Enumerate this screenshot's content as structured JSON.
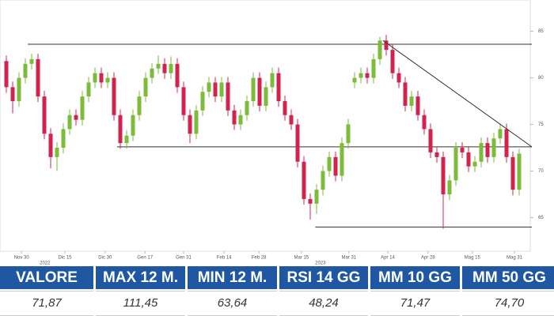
{
  "chart_data": {
    "type": "candlestick",
    "x": [
      0,
      1,
      2,
      3,
      4,
      5,
      6,
      7,
      8,
      9,
      10,
      11,
      12,
      13,
      14,
      15,
      16,
      17,
      18,
      19,
      20,
      21,
      22,
      23,
      24,
      25,
      26,
      27,
      28,
      29,
      30,
      31,
      32,
      33,
      34,
      35,
      36,
      37,
      38,
      39,
      40,
      41,
      42,
      43,
      44,
      45,
      46,
      47,
      48,
      49,
      50,
      51,
      52,
      53,
      54,
      55,
      56,
      57,
      58,
      59,
      60,
      61,
      62,
      63,
      64,
      65,
      66,
      67,
      68,
      69,
      70,
      71,
      72,
      73,
      74,
      75,
      76,
      77,
      78,
      79,
      80,
      81
    ],
    "open": [
      81.8,
      79.0,
      77.5,
      80.0,
      81.5,
      82.0,
      78.0,
      74.0,
      71.5,
      72.5,
      74.5,
      76.0,
      75.5,
      78.0,
      79.5,
      80.5,
      79.5,
      80.0,
      76.0,
      73.0,
      73.8,
      76.0,
      78.0,
      80.0,
      81.0,
      81.5,
      80.5,
      81.5,
      79.0,
      76.0,
      74.0,
      76.5,
      78.5,
      79.5,
      78.0,
      79.5,
      76.5,
      75.0,
      76.0,
      77.5,
      80.0,
      77.0,
      79.0,
      80.5,
      77.5,
      76.0,
      75.0,
      71.0,
      67.0,
      66.5,
      68.0,
      70.0,
      71.5,
      69.5,
      73.0,
      79.5,
      80.0,
      80.5,
      80.0,
      82.0,
      84.0,
      83.0,
      80.5,
      79.5,
      77.0,
      78.0,
      76.0,
      74.5,
      72.0,
      71.5,
      67.5,
      69.0,
      72.5,
      72.0,
      70.5,
      71.0,
      73.0,
      71.5,
      73.5,
      74.5,
      71.5,
      68.0
    ],
    "high": [
      82.4,
      79.6,
      80.6,
      82.1,
      82.6,
      82.6,
      78.6,
      74.6,
      73.1,
      75.1,
      76.6,
      76.6,
      78.6,
      80.1,
      81.1,
      81.1,
      80.6,
      80.6,
      76.6,
      74.4,
      76.6,
      78.6,
      80.6,
      81.6,
      82.4,
      82.1,
      82.3,
      82.1,
      79.6,
      76.6,
      77.1,
      79.1,
      80.1,
      80.1,
      80.1,
      80.1,
      77.1,
      76.6,
      78.1,
      80.6,
      80.6,
      79.6,
      81.1,
      81.1,
      78.1,
      76.6,
      75.6,
      71.6,
      67.6,
      68.6,
      70.6,
      72.1,
      72.1,
      73.6,
      75.6,
      80.6,
      81.1,
      81.1,
      82.6,
      84.4,
      84.6,
      83.6,
      81.1,
      80.1,
      78.6,
      78.6,
      76.6,
      75.1,
      72.6,
      72.1,
      69.6,
      73.1,
      73.1,
      72.6,
      71.6,
      73.6,
      73.6,
      74.1,
      75.1,
      75.1,
      72.1,
      72.4
    ],
    "low": [
      78.4,
      76.2,
      76.9,
      79.4,
      80.9,
      77.4,
      73.4,
      70.3,
      70.0,
      71.9,
      73.9,
      74.9,
      74.9,
      77.4,
      78.9,
      78.9,
      78.9,
      75.4,
      72.4,
      72.4,
      73.2,
      75.4,
      77.4,
      79.4,
      80.4,
      79.9,
      79.9,
      78.4,
      75.4,
      73.0,
      73.4,
      75.9,
      77.9,
      77.4,
      77.4,
      75.9,
      74.4,
      74.4,
      75.4,
      76.9,
      76.4,
      76.4,
      78.4,
      76.9,
      75.4,
      74.4,
      70.4,
      66.4,
      64.8,
      65.4,
      67.4,
      69.4,
      68.9,
      68.9,
      72.4,
      78.9,
      79.4,
      79.4,
      79.4,
      81.4,
      82.4,
      79.9,
      78.9,
      76.4,
      76.4,
      75.4,
      73.9,
      71.4,
      70.9,
      63.8,
      66.9,
      68.4,
      71.4,
      69.9,
      69.9,
      70.4,
      70.9,
      70.9,
      72.9,
      70.9,
      67.4,
      67.4
    ],
    "close": [
      79.0,
      77.5,
      80.0,
      81.5,
      82.0,
      78.0,
      74.0,
      71.5,
      72.5,
      74.5,
      76.0,
      75.5,
      78.0,
      79.5,
      80.5,
      79.5,
      80.0,
      76.0,
      73.0,
      73.8,
      76.0,
      78.0,
      80.0,
      81.0,
      81.5,
      80.5,
      81.5,
      79.0,
      76.0,
      74.0,
      76.5,
      78.5,
      79.5,
      78.0,
      79.5,
      76.5,
      75.0,
      76.0,
      77.5,
      80.0,
      77.0,
      79.0,
      80.5,
      77.5,
      76.0,
      75.0,
      71.0,
      67.0,
      66.5,
      68.0,
      70.0,
      71.5,
      69.5,
      73.0,
      75.0,
      80.0,
      80.5,
      80.0,
      82.0,
      84.0,
      83.0,
      80.5,
      79.5,
      77.0,
      78.0,
      76.0,
      74.5,
      72.0,
      71.5,
      67.5,
      69.0,
      72.5,
      72.0,
      70.5,
      71.0,
      73.0,
      71.5,
      73.5,
      74.5,
      71.5,
      68.0,
      71.87
    ],
    "up_color": "#7dbb3a",
    "down_color": "#d2234f",
    "xlim": [
      -1,
      82.5
    ],
    "ylim": [
      61.4,
      88.35
    ],
    "yticks": [
      65,
      70,
      75,
      80,
      85
    ],
    "xticks": [
      {
        "value": 2.4,
        "label": "Nov 30"
      },
      {
        "value": 9.25,
        "label": "Dic 15"
      },
      {
        "value": 15.6,
        "label": "Dic 30"
      },
      {
        "value": 21.9,
        "label": "Gen 17"
      },
      {
        "value": 28,
        "label": "Gen 31"
      },
      {
        "value": 34.4,
        "label": "Feb 14"
      },
      {
        "value": 39.9,
        "label": "Feb 28"
      },
      {
        "value": 46.6,
        "label": "Mar 15"
      },
      {
        "value": 54.1,
        "label": "Mar 31"
      },
      {
        "value": 60.25,
        "label": "Apr 14"
      },
      {
        "value": 66.6,
        "label": "Apr 28"
      },
      {
        "value": 73.6,
        "label": "Mag 15"
      },
      {
        "value": 80.25,
        "label": "Mag 31"
      }
    ],
    "year_labels": [
      {
        "value": 6.1,
        "label": "2022"
      },
      {
        "value": 49.6,
        "label": "2023"
      }
    ],
    "levels": [
      {
        "value": 83.6,
        "from": 3.4
      },
      {
        "value": 72.6,
        "from": 17.5
      },
      {
        "value": 64.0,
        "from": 48.8
      }
    ],
    "trendline": {
      "x": [
        59.5,
        83
      ],
      "y": [
        84.0,
        72.6
      ]
    }
  },
  "table": {
    "header": [
      "VALORE",
      "MAX 12 M.",
      "MIN 12 M.",
      "RSI 14 GG",
      "MM 10 GG",
      "MM 50 GG"
    ],
    "values": [
      "71,87",
      "111,45",
      "63,64",
      "48,24",
      "71,47",
      "74,70"
    ]
  }
}
